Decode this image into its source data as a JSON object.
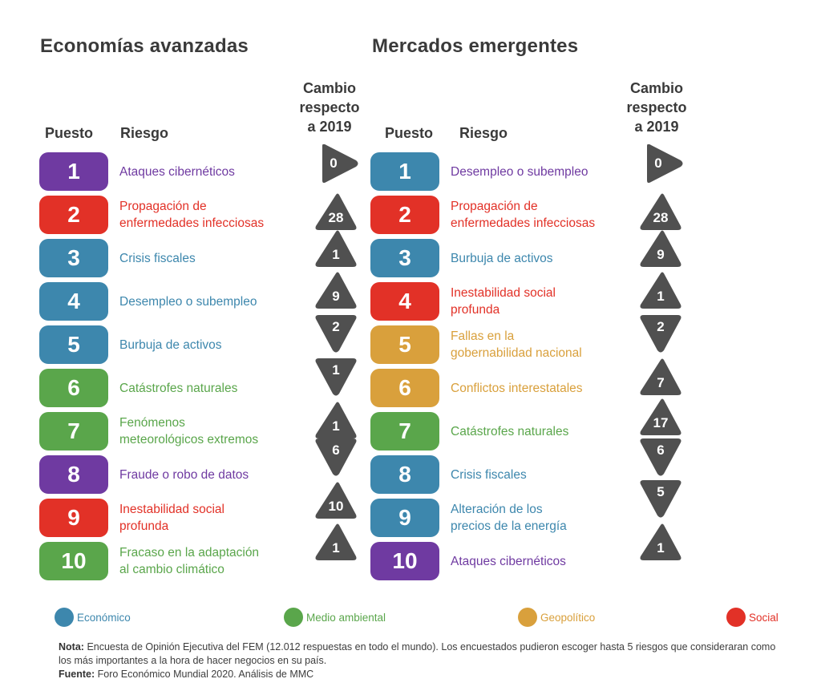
{
  "colors": {
    "economico": "#3d87ad",
    "medio_ambiental": "#5aa64b",
    "geopolitico": "#d9a03c",
    "social": "#e23127",
    "tecnologico": "#6f3aa1",
    "change_marker": "#505050"
  },
  "left": {
    "title": "Economías avanzadas",
    "col_rank": "Puesto",
    "col_risk": "Riesgo",
    "col_change": [
      "Cambio",
      "respecto",
      "a 2019"
    ],
    "rows": [
      {
        "rank": "1",
        "label": [
          "Ataques cibernéticos"
        ],
        "category": "tecnologico",
        "change": "0",
        "direction": "same"
      },
      {
        "rank": "2",
        "label": [
          "Propagación de",
          "enfermedades infecciosas"
        ],
        "category": "social",
        "change": "28",
        "direction": "up"
      },
      {
        "rank": "3",
        "label": [
          "Crisis fiscales"
        ],
        "category": "economico",
        "change": "1",
        "direction": "up"
      },
      {
        "rank": "4",
        "label": [
          "Desempleo o subempleo"
        ],
        "category": "economico",
        "change": "9",
        "direction": "up"
      },
      {
        "rank": "5",
        "label": [
          "Burbuja de activos"
        ],
        "category": "economico",
        "change": "2",
        "direction": "down"
      },
      {
        "rank": "6",
        "label": [
          "Catástrofes naturales"
        ],
        "category": "medio_ambiental",
        "change": "1",
        "direction": "down"
      },
      {
        "rank": "7",
        "label": [
          "Fenómenos",
          "meteorológicos extremos"
        ],
        "category": "medio_ambiental",
        "change": "1",
        "direction": "up"
      },
      {
        "rank": "8",
        "label": [
          "Fraude o robo de datos"
        ],
        "category": "tecnologico",
        "change": "6",
        "direction": "down"
      },
      {
        "rank": "9",
        "label": [
          "Inestabilidad social",
          "profunda"
        ],
        "category": "social",
        "change": "10",
        "direction": "up"
      },
      {
        "rank": "10",
        "label": [
          "Fracaso en la adaptación",
          "al cambio climático"
        ],
        "category": "medio_ambiental",
        "change": "1",
        "direction": "up"
      }
    ]
  },
  "right": {
    "title": "Mercados emergentes",
    "col_rank": "Puesto",
    "col_risk": "Riesgo",
    "col_change": [
      "Cambio",
      "respecto",
      "a 2019"
    ],
    "rows": [
      {
        "rank": "1",
        "label": [
          "Desempleo o subempleo"
        ],
        "category": "economico",
        "label_color": "tecnologico",
        "change": "0",
        "direction": "same"
      },
      {
        "rank": "2",
        "label": [
          "Propagación de",
          "enfermedades infecciosas"
        ],
        "category": "social",
        "change": "28",
        "direction": "up"
      },
      {
        "rank": "3",
        "label": [
          "Burbuja de activos"
        ],
        "category": "economico",
        "change": "9",
        "direction": "up"
      },
      {
        "rank": "4",
        "label": [
          "Inestabilidad social",
          "profunda"
        ],
        "category": "social",
        "change": "1",
        "direction": "up"
      },
      {
        "rank": "5",
        "label": [
          "Fallas en la",
          "gobernabilidad nacional"
        ],
        "category": "geopolitico",
        "change": "2",
        "direction": "down"
      },
      {
        "rank": "6",
        "label": [
          "Conflictos interestatales"
        ],
        "category": "geopolitico",
        "change": "7",
        "direction": "up"
      },
      {
        "rank": "7",
        "label": [
          "Catástrofes naturales"
        ],
        "category": "medio_ambiental",
        "change": "17",
        "direction": "up"
      },
      {
        "rank": "8",
        "label": [
          "Crisis fiscales"
        ],
        "category": "economico",
        "change": "6",
        "direction": "down"
      },
      {
        "rank": "9",
        "label": [
          "Alteración de los",
          "precios de la energía"
        ],
        "category": "economico",
        "change": "5",
        "direction": "down"
      },
      {
        "rank": "10",
        "label": [
          "Ataques cibernéticos"
        ],
        "category": "tecnologico",
        "change": "1",
        "direction": "up"
      }
    ]
  },
  "legend": [
    {
      "label": "Económico",
      "category": "economico"
    },
    {
      "label": "Medio ambiental",
      "category": "medio_ambiental"
    },
    {
      "label": "Geopolítico",
      "category": "geopolitico"
    },
    {
      "label": "Social",
      "category": "social"
    }
  ],
  "notes": {
    "nota_label": "Nota:",
    "nota_text": "Encuesta de Opinión Ejecutiva del FEM (12.012 respuestas en todo el mundo). Los encuestados pudieron escoger hasta 5 riesgos que consideraran como los más importantes a la hora de hacer negocios en su país.",
    "fuente_label": "Fuente:",
    "fuente_text": "Foro Económico Mundial 2020. Análisis de MMC"
  }
}
